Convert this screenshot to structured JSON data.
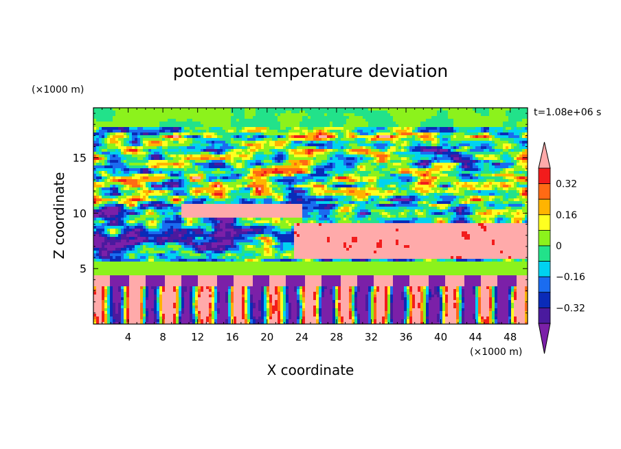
{
  "chart_data": {
    "type": "heatmap",
    "title": "potential temperature deviation",
    "time_label": "t=1.08e+06 s",
    "xlabel": "X coordinate",
    "ylabel": "Z coordinate",
    "x_unit": "(×1000 m)",
    "y_unit": "(×1000 m)",
    "xlim": [
      0,
      50
    ],
    "ylim": [
      0,
      19.5
    ],
    "x_ticks": [
      "4",
      "8",
      "12",
      "16",
      "20",
      "24",
      "28",
      "32",
      "36",
      "40",
      "44",
      "48"
    ],
    "y_ticks": [
      "5",
      "10",
      "15"
    ],
    "colorbar": {
      "levels": [
        -0.4,
        -0.32,
        -0.24,
        -0.16,
        -0.08,
        0,
        0.08,
        0.16,
        0.24,
        0.32,
        0.4
      ],
      "tick_labels": [
        "0.32",
        "0.16",
        "0",
        "−0.16",
        "−0.32"
      ],
      "tick_values": [
        0.32,
        0.16,
        0,
        -0.16,
        -0.32
      ],
      "colors": [
        "#7b20a8",
        "#4a1a9e",
        "#0a2bb8",
        "#1a6cf0",
        "#00d2f0",
        "#22e28a",
        "#8cf21c",
        "#ffff20",
        "#ffb400",
        "#ff6a14",
        "#f21c1c",
        "#ffaaaa"
      ]
    }
  }
}
